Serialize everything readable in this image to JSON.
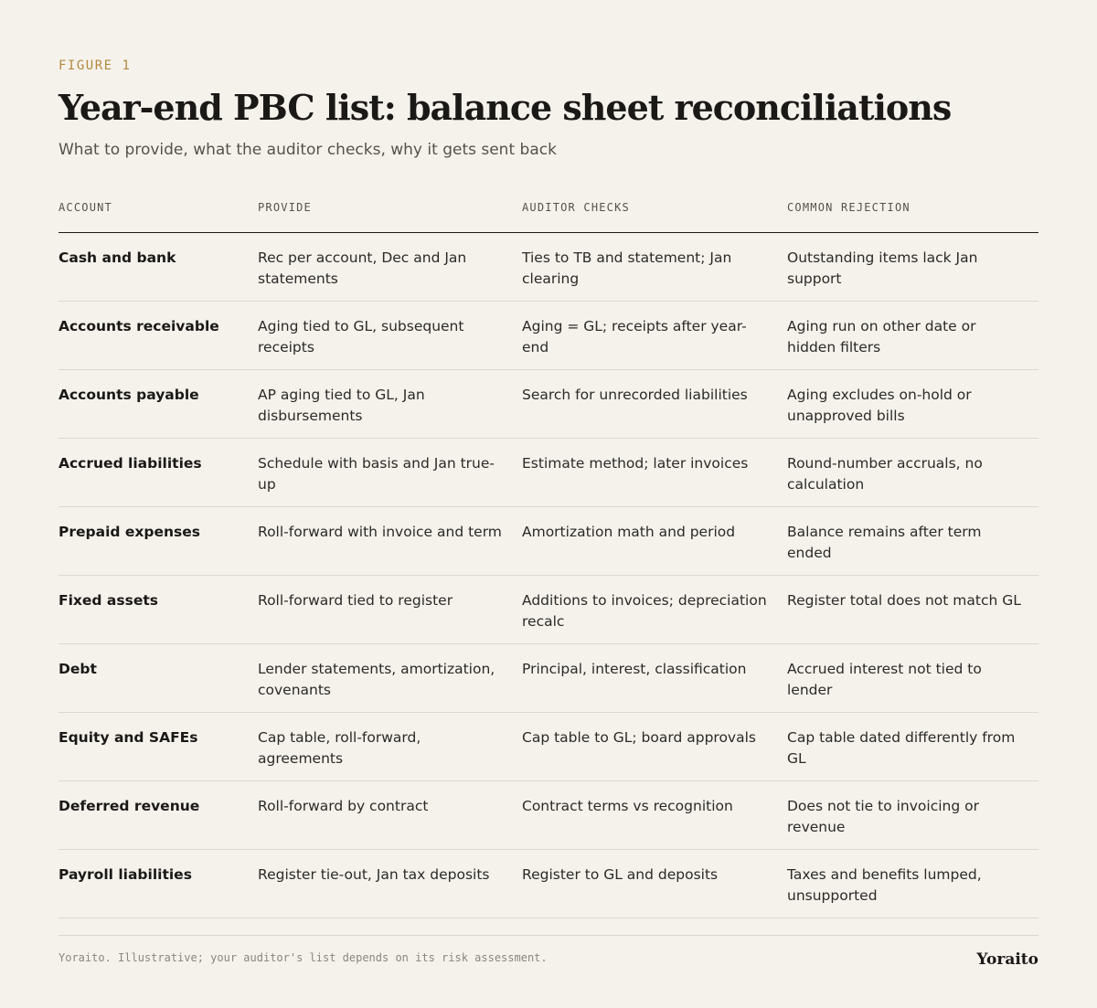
{
  "figure_label": "FIGURE 1",
  "title": "Year-end PBC list: balance sheet reconciliations",
  "subtitle": "What to provide, what the auditor checks, why it gets sent back",
  "table": {
    "headers": [
      "ACCOUNT",
      "PROVIDE",
      "AUDITOR CHECKS",
      "COMMON REJECTION"
    ],
    "rows": [
      [
        "Cash and bank",
        "Rec per account, Dec and Jan statements",
        "Ties to TB and statement; Jan clearing",
        "Outstanding items lack Jan support"
      ],
      [
        "Accounts receivable",
        "Aging tied to GL, subsequent receipts",
        "Aging = GL; receipts after year-end",
        "Aging run on other date or hidden filters"
      ],
      [
        "Accounts payable",
        "AP aging tied to GL, Jan disbursements",
        "Search for unrecorded liabilities",
        "Aging excludes on-hold or unapproved bills"
      ],
      [
        "Accrued liabilities",
        "Schedule with basis and Jan true-up",
        "Estimate method; later invoices",
        "Round-number accruals, no calculation"
      ],
      [
        "Prepaid expenses",
        "Roll-forward with invoice and term",
        "Amortization math and period",
        "Balance remains after term ended"
      ],
      [
        "Fixed assets",
        "Roll-forward tied to register",
        "Additions to invoices; depreciation recalc",
        "Register total does not match GL"
      ],
      [
        "Debt",
        "Lender statements, amortization, covenants",
        "Principal, interest, classification",
        "Accrued interest not tied to lender"
      ],
      [
        "Equity and SAFEs",
        "Cap table, roll-forward, agreements",
        "Cap table to GL; board approvals",
        "Cap table dated differently from GL"
      ],
      [
        "Deferred revenue",
        "Roll-forward by contract",
        "Contract terms vs recognition",
        "Does not tie to invoicing or revenue"
      ],
      [
        "Payroll liabilities",
        "Register tie-out, Jan tax deposits",
        "Register to GL and deposits",
        "Taxes and benefits lumped, unsupported"
      ]
    ]
  },
  "footer": {
    "note": "Yoraito. Illustrative; your auditor's list depends on its risk assessment.",
    "brand": "Yoraito"
  }
}
